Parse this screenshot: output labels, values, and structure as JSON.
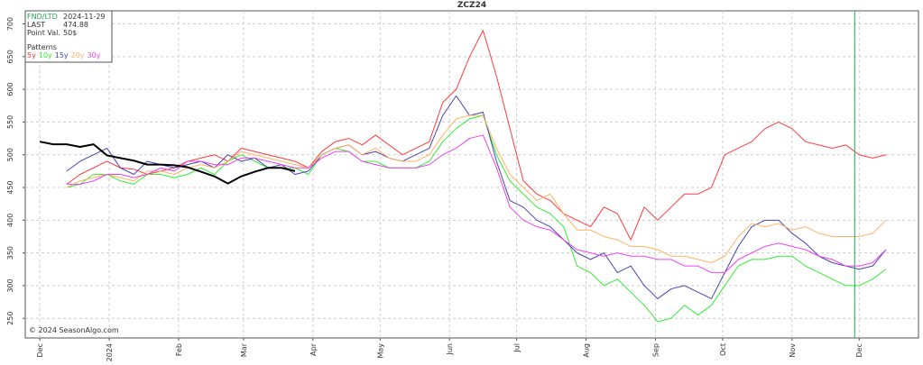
{
  "chart_data": {
    "type": "line",
    "title": "ZCZ24",
    "info": {
      "fnd_label": "FND/LTD",
      "fnd_date": "2024-11-29",
      "last_label": "LAST",
      "last_value": 474.88,
      "point_label": "Point Val.",
      "point_value": "50$",
      "patterns_label": "Patterns"
    },
    "copyright": "© 2024 SeasonAlgo.com",
    "fnd_x": 364,
    "xlim": [
      -6.5,
      392.5
    ],
    "xticks": [
      {
        "value": 0,
        "label": "Dec"
      },
      {
        "value": 31,
        "label": "2024"
      },
      {
        "value": 62,
        "label": "Feb"
      },
      {
        "value": 91,
        "label": "Mar"
      },
      {
        "value": 122,
        "label": "Apr"
      },
      {
        "value": 152,
        "label": "May"
      },
      {
        "value": 183,
        "label": "Jun"
      },
      {
        "value": 213,
        "label": "Jul"
      },
      {
        "value": 244,
        "label": "Aug"
      },
      {
        "value": 275,
        "label": "Sep"
      },
      {
        "value": 305,
        "label": "Oct"
      },
      {
        "value": 336,
        "label": "Nov"
      },
      {
        "value": 366,
        "label": "Dec"
      }
    ],
    "ylim": [
      220,
      720
    ],
    "yticks": [
      250,
      300,
      350,
      400,
      450,
      500,
      550,
      600,
      650,
      700
    ],
    "grid": true,
    "x": [
      0,
      6,
      12,
      18,
      24,
      30,
      36,
      42,
      48,
      54,
      60,
      66,
      72,
      78,
      84,
      90,
      96,
      102,
      108,
      114,
      120,
      126,
      132,
      138,
      144,
      150,
      156,
      162,
      168,
      174,
      180,
      186,
      192,
      198,
      204,
      210,
      216,
      222,
      228,
      234,
      240,
      246,
      252,
      258,
      264,
      270,
      276,
      282,
      288,
      294,
      300,
      306,
      312,
      318,
      324,
      330,
      336,
      342,
      348,
      354,
      360,
      366,
      372,
      378
    ],
    "series": [
      {
        "name": "5y",
        "color": "#ff3b3b",
        "values": [
          null,
          null,
          455,
          470,
          480,
          490,
          480,
          478,
          470,
          475,
          480,
          490,
          495,
          500,
          490,
          510,
          505,
          500,
          495,
          490,
          480,
          505,
          520,
          525,
          515,
          530,
          515,
          500,
          510,
          520,
          580,
          600,
          650,
          690,
          620,
          540,
          460,
          440,
          430,
          410,
          400,
          390,
          420,
          410,
          370,
          420,
          400,
          420,
          440,
          440,
          450,
          500,
          510,
          520,
          540,
          550,
          540,
          520,
          515,
          510,
          515,
          500,
          495,
          500
        ]
      },
      {
        "name": "10y",
        "color": "#33ee33",
        "values": [
          null,
          null,
          450,
          455,
          470,
          470,
          460,
          455,
          470,
          470,
          465,
          470,
          480,
          470,
          490,
          500,
          490,
          480,
          480,
          480,
          470,
          500,
          510,
          505,
          490,
          490,
          480,
          480,
          480,
          490,
          520,
          540,
          555,
          560,
          500,
          460,
          440,
          420,
          410,
          390,
          330,
          320,
          300,
          310,
          290,
          270,
          245,
          250,
          270,
          255,
          270,
          300,
          330,
          340,
          340,
          345,
          345,
          330,
          320,
          310,
          300,
          300,
          310,
          325
        ]
      },
      {
        "name": "15y",
        "color": "#4646b4",
        "values": [
          null,
          null,
          475,
          490,
          500,
          510,
          480,
          470,
          490,
          485,
          480,
          485,
          490,
          480,
          500,
          490,
          495,
          480,
          485,
          470,
          475,
          500,
          510,
          515,
          500,
          505,
          495,
          490,
          500,
          510,
          560,
          590,
          560,
          565,
          490,
          430,
          420,
          400,
          390,
          370,
          350,
          340,
          350,
          320,
          330,
          300,
          280,
          295,
          300,
          290,
          280,
          320,
          360,
          390,
          400,
          400,
          380,
          365,
          345,
          335,
          330,
          325,
          330,
          355
        ]
      },
      {
        "name": "20y",
        "color": "#ffb266",
        "values": [
          null,
          null,
          450,
          460,
          465,
          470,
          465,
          460,
          475,
          475,
          470,
          480,
          485,
          480,
          490,
          505,
          500,
          495,
          490,
          485,
          480,
          500,
          510,
          515,
          500,
          510,
          495,
          490,
          490,
          500,
          530,
          555,
          560,
          560,
          510,
          470,
          450,
          430,
          440,
          410,
          385,
          385,
          375,
          370,
          360,
          360,
          355,
          345,
          345,
          340,
          335,
          345,
          375,
          395,
          390,
          395,
          385,
          390,
          380,
          375,
          375,
          375,
          380,
          400
        ]
      },
      {
        "name": "30y",
        "color": "#ee44ee",
        "values": [
          null,
          null,
          455,
          455,
          460,
          470,
          470,
          465,
          470,
          480,
          475,
          490,
          490,
          485,
          485,
          495,
          495,
          490,
          485,
          480,
          480,
          495,
          505,
          505,
          490,
          485,
          480,
          480,
          480,
          485,
          500,
          510,
          525,
          530,
          480,
          420,
          400,
          390,
          385,
          370,
          355,
          350,
          345,
          350,
          345,
          345,
          340,
          340,
          330,
          330,
          320,
          320,
          340,
          350,
          360,
          365,
          360,
          355,
          345,
          340,
          330,
          330,
          335,
          355
        ]
      },
      {
        "color": "#000000",
        "values": [
          520,
          516,
          516,
          512,
          516,
          499,
          495,
          491,
          485,
          485,
          484,
          481,
          474,
          467,
          456,
          467,
          474,
          480,
          480,
          475,
          null,
          null,
          null,
          null,
          null,
          null,
          null,
          null,
          null,
          null,
          null,
          null,
          null,
          null,
          null,
          null,
          null,
          null,
          null,
          null,
          null,
          null,
          null,
          null,
          null,
          null,
          null,
          null,
          null,
          null,
          null,
          null,
          null,
          null,
          null,
          null,
          null,
          null,
          null,
          null,
          null,
          null,
          null,
          null
        ]
      }
    ]
  }
}
